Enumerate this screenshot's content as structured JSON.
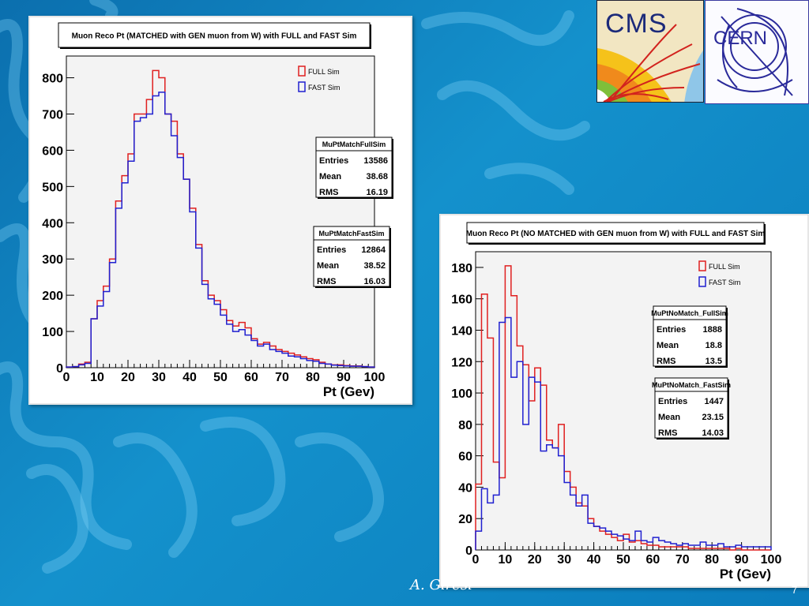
{
  "slide": {
    "author": "A. Giresi",
    "page_number": "7",
    "background_color": "#0e85c2",
    "logos": {
      "cms": "CMS",
      "cern": "CERN"
    }
  },
  "chart_data": [
    {
      "type": "histogram",
      "title": "Muon Reco Pt (MATCHED with GEN muon from W) with FULL and FAST Sim",
      "xlabel": "Pt (Gev)",
      "ylabel": "",
      "xlim": [
        0,
        100
      ],
      "ylim": [
        0,
        860
      ],
      "xticks": [
        0,
        10,
        20,
        30,
        40,
        50,
        60,
        70,
        80,
        90,
        100
      ],
      "yticks": [
        0,
        100,
        200,
        300,
        400,
        500,
        600,
        700,
        800
      ],
      "bin_width": 2,
      "grid": false,
      "legend": {
        "position": "top-right",
        "entries": [
          {
            "label": "FULL Sim",
            "color": "#e02020"
          },
          {
            "label": "FAST Sim",
            "color": "#2020d0"
          }
        ]
      },
      "series": [
        {
          "name": "FULL Sim",
          "color": "#e02020",
          "values": [
            2,
            3,
            10,
            15,
            135,
            185,
            225,
            300,
            460,
            530,
            590,
            700,
            700,
            740,
            820,
            800,
            700,
            680,
            590,
            520,
            440,
            340,
            240,
            200,
            185,
            160,
            130,
            115,
            125,
            110,
            80,
            65,
            70,
            60,
            50,
            45,
            40,
            35,
            30,
            25,
            22,
            15,
            10,
            8,
            8,
            6,
            5,
            5,
            3,
            2
          ]
        },
        {
          "name": "FAST Sim",
          "color": "#2020d0",
          "values": [
            2,
            3,
            8,
            12,
            135,
            170,
            210,
            290,
            440,
            510,
            570,
            680,
            690,
            700,
            750,
            760,
            700,
            640,
            580,
            520,
            430,
            330,
            230,
            190,
            175,
            145,
            120,
            100,
            105,
            90,
            75,
            60,
            65,
            50,
            45,
            40,
            32,
            30,
            25,
            20,
            18,
            12,
            10,
            7,
            6,
            5,
            4,
            4,
            3,
            2
          ]
        }
      ],
      "stats": [
        {
          "name": "MuPtMatchFullSim",
          "rows": [
            [
              "Entries",
              "13586"
            ],
            [
              "Mean",
              "38.68"
            ],
            [
              "RMS",
              "16.19"
            ]
          ]
        },
        {
          "name": "MuPtMatchFastSim",
          "rows": [
            [
              "Entries",
              "12864"
            ],
            [
              "Mean",
              "38.52"
            ],
            [
              "RMS",
              "16.03"
            ]
          ]
        }
      ]
    },
    {
      "type": "histogram",
      "title": "Muon Reco Pt (NO MATCHED with GEN muon from W) with FULL and FAST Sim",
      "xlabel": "Pt (Gev)",
      "ylabel": "",
      "xlim": [
        0,
        100
      ],
      "ylim": [
        0,
        190
      ],
      "xticks": [
        0,
        10,
        20,
        30,
        40,
        50,
        60,
        70,
        80,
        90,
        100
      ],
      "yticks": [
        0,
        20,
        40,
        60,
        80,
        100,
        120,
        140,
        160,
        180
      ],
      "bin_width": 2,
      "grid": false,
      "legend": {
        "position": "top-right",
        "entries": [
          {
            "label": "FULL Sim",
            "color": "#e02020"
          },
          {
            "label": "FAST Sim",
            "color": "#2020d0"
          }
        ]
      },
      "series": [
        {
          "name": "FULL Sim",
          "color": "#e02020",
          "values": [
            42,
            163,
            135,
            56,
            46,
            181,
            162,
            130,
            118,
            95,
            116,
            105,
            70,
            65,
            80,
            50,
            40,
            30,
            28,
            20,
            15,
            12,
            10,
            8,
            6,
            10,
            5,
            6,
            4,
            3,
            3,
            2,
            2,
            2,
            2,
            2,
            1,
            1,
            1,
            1,
            1,
            1,
            1,
            0,
            1,
            0,
            0,
            0,
            0,
            0
          ]
        },
        {
          "name": "FAST Sim",
          "color": "#2020d0",
          "values": [
            12,
            39,
            30,
            35,
            145,
            148,
            110,
            120,
            80,
            110,
            107,
            63,
            67,
            65,
            60,
            43,
            35,
            28,
            35,
            17,
            15,
            14,
            12,
            10,
            9,
            7,
            6,
            12,
            6,
            5,
            8,
            6,
            5,
            4,
            3,
            4,
            3,
            3,
            5,
            3,
            3,
            4,
            2,
            2,
            3,
            2,
            2,
            2,
            2,
            2
          ]
        }
      ],
      "stats": [
        {
          "name": "MuPtNoMatch_FullSim",
          "rows": [
            [
              "Entries",
              "1888"
            ],
            [
              "Mean",
              "18.8"
            ],
            [
              "RMS",
              "13.5"
            ]
          ]
        },
        {
          "name": "MuPtNoMatch_FastSim",
          "rows": [
            [
              "Entries",
              "1447"
            ],
            [
              "Mean",
              "23.15"
            ],
            [
              "RMS",
              "14.03"
            ]
          ]
        }
      ]
    }
  ]
}
